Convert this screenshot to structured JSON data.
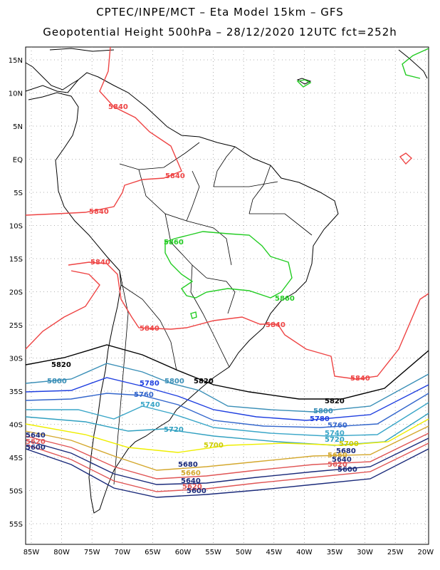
{
  "title": {
    "line1": "CPTEC/INPE/MCT –  Eta Model 15km – GFS",
    "line2": "Geopotential Height 500hPa – 28/12/2020 12UTC fct=252h"
  },
  "axes": {
    "lat_labels": [
      "15N",
      "10N",
      "5N",
      "EQ",
      "5S",
      "10S",
      "15S",
      "20S",
      "25S",
      "30S",
      "35S",
      "40S",
      "45S",
      "50S",
      "55S"
    ],
    "lon_labels": [
      "85W",
      "80W",
      "75W",
      "70W",
      "65W",
      "60W",
      "55W",
      "50W",
      "45W",
      "40W",
      "35W",
      "30W",
      "25W",
      "20W"
    ]
  },
  "colors": {
    "c5860": "#22cc22",
    "c5840": "#ee4444",
    "c5820": "#000000",
    "c5800": "#3a8fb7",
    "c5780": "#1f3fe0",
    "c5760": "#3366cc",
    "c5740": "#3aa6c8",
    "c5720": "#30a0c0",
    "c5700": "#eeee00",
    "c5680": "#d4a82e",
    "c5660": "#e05555",
    "c5640": "#1a2a7a",
    "coast": "#000000"
  },
  "contour_labels": {
    "c5840": "5840",
    "c5860": "5860",
    "c5820": "5820",
    "c5800": "5800",
    "c5780": "5780",
    "c5760": "5760",
    "c5740": "5740",
    "c5720": "5720",
    "c5700": "5700",
    "c5680": "5680",
    "c5660": "5660",
    "c5640": "5640",
    "c5620": "5620",
    "c5600": "5600"
  }
}
